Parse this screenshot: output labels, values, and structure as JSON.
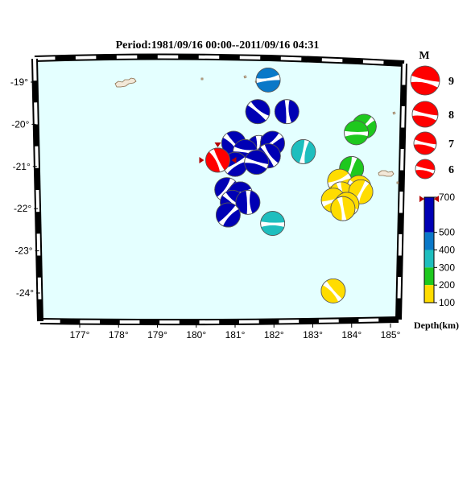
{
  "title": "Period:1981/09/16 00:00--2011/09/16 04:31",
  "map": {
    "ocean_color": "#e4ffff",
    "lon_ticks": [
      "177°",
      "178°",
      "179°",
      "180°",
      "181°",
      "182°",
      "183°",
      "184°",
      "185°"
    ],
    "lat_ticks": [
      "-19°",
      "-20°",
      "-21°",
      "-22°",
      "-23°",
      "-24°"
    ]
  },
  "depth_scale": {
    "label": "Depth(km)",
    "tick_labels": [
      "700",
      "500",
      "400",
      "300",
      "200",
      "100"
    ],
    "colors": {
      "deep": "#0000b4",
      "intermediate": "#0a78c8",
      "mid": "#1ebebe",
      "shallow_mid": "#1ec81e",
      "shallow": "#ffdc00"
    },
    "marker_value_km": 690
  },
  "magnitude_legend": {
    "label": "M",
    "entries": [
      "9",
      "8",
      "7",
      "6"
    ],
    "color": "#ff0000"
  },
  "events": [
    {
      "lon": 181.8,
      "lat": -18.95,
      "color": "#0a78c8"
    },
    {
      "lon": 181.55,
      "lat": -19.7,
      "color": "#0000b4"
    },
    {
      "lon": 182.3,
      "lat": -19.7,
      "color": "#0000b4"
    },
    {
      "lon": 184.3,
      "lat": -20.05,
      "color": "#1ec81e"
    },
    {
      "lon": 184.1,
      "lat": -20.2,
      "color": "#1ec81e"
    },
    {
      "lon": 180.95,
      "lat": -20.45,
      "color": "#0000b4"
    },
    {
      "lon": 181.6,
      "lat": -20.55,
      "color": "#0000b4"
    },
    {
      "lon": 181.95,
      "lat": -20.45,
      "color": "#0000b4"
    },
    {
      "lon": 181.25,
      "lat": -20.65,
      "color": "#0000b4"
    },
    {
      "lon": 181.85,
      "lat": -20.75,
      "color": "#0000b4"
    },
    {
      "lon": 182.75,
      "lat": -20.65,
      "color": "#1ebebe"
    },
    {
      "lon": 181.0,
      "lat": -20.95,
      "color": "#0000b4"
    },
    {
      "lon": 181.55,
      "lat": -20.9,
      "color": "#0000b4"
    },
    {
      "lon": 180.55,
      "lat": -20.85,
      "color": "#ff0000",
      "highlight": true
    },
    {
      "lon": 184.0,
      "lat": -21.05,
      "color": "#1ec81e"
    },
    {
      "lon": 183.7,
      "lat": -21.35,
      "color": "#ffdc00"
    },
    {
      "lon": 184.2,
      "lat": -21.5,
      "color": "#ffdc00"
    },
    {
      "lon": 183.75,
      "lat": -21.65,
      "color": "#ffdc00"
    },
    {
      "lon": 184.25,
      "lat": -21.6,
      "color": "#ffdc00"
    },
    {
      "lon": 183.55,
      "lat": -21.8,
      "color": "#ffdc00"
    },
    {
      "lon": 183.9,
      "lat": -21.9,
      "color": "#ffdc00"
    },
    {
      "lon": 183.8,
      "lat": -22.0,
      "color": "#ffdc00"
    },
    {
      "lon": 180.8,
      "lat": -21.55,
      "color": "#0000b4"
    },
    {
      "lon": 181.15,
      "lat": -21.65,
      "color": "#0000b4"
    },
    {
      "lon": 180.95,
      "lat": -21.85,
      "color": "#0000b4"
    },
    {
      "lon": 181.35,
      "lat": -21.85,
      "color": "#0000b4"
    },
    {
      "lon": 180.85,
      "lat": -22.15,
      "color": "#0000b4"
    },
    {
      "lon": 182.0,
      "lat": -22.35,
      "color": "#1ebebe"
    },
    {
      "lon": 183.6,
      "lat": -23.95,
      "color": "#ffdc00"
    }
  ]
}
